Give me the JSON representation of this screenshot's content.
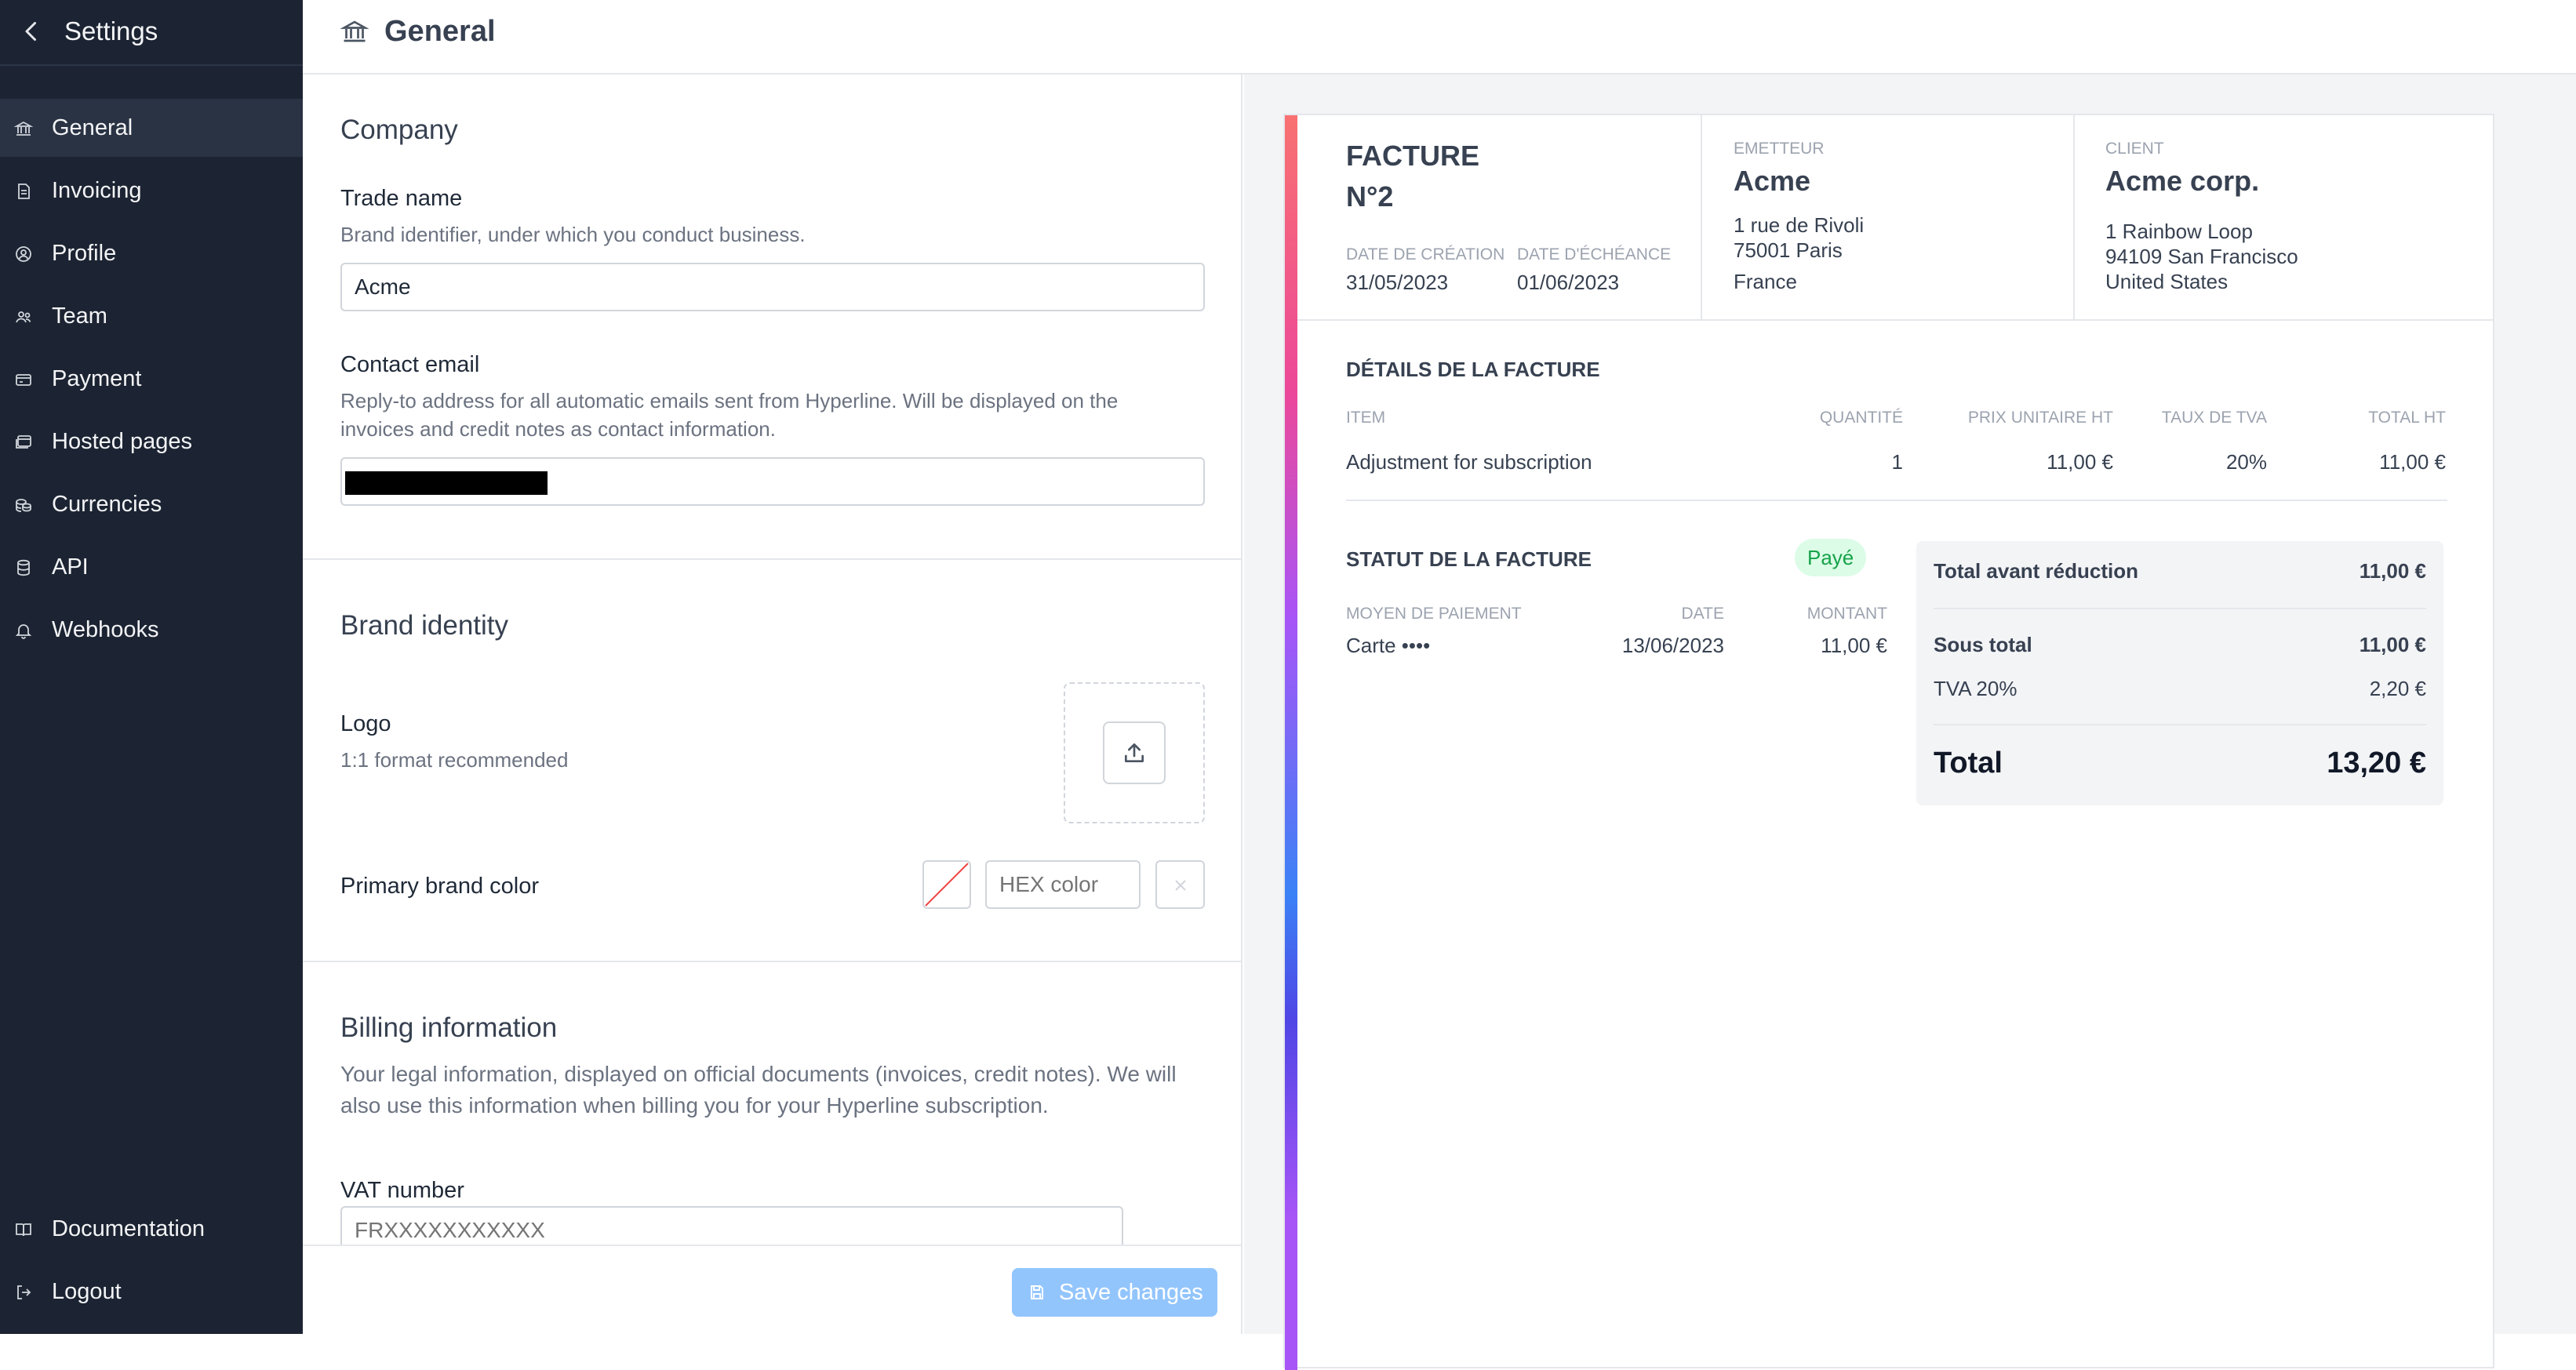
{
  "sidebar": {
    "title": "Settings",
    "items": [
      {
        "label": "General",
        "icon": "bank-icon"
      },
      {
        "label": "Invoicing",
        "icon": "document-icon"
      },
      {
        "label": "Profile",
        "icon": "user-circle-icon"
      },
      {
        "label": "Team",
        "icon": "team-icon"
      },
      {
        "label": "Payment",
        "icon": "credit-card-icon"
      },
      {
        "label": "Hosted pages",
        "icon": "browser-window-icon"
      },
      {
        "label": "Currencies",
        "icon": "coins-icon"
      },
      {
        "label": "API",
        "icon": "database-icon"
      },
      {
        "label": "Webhooks",
        "icon": "bell-icon"
      }
    ],
    "bottom": [
      {
        "label": "Documentation",
        "icon": "book-icon"
      },
      {
        "label": "Logout",
        "icon": "logout-icon"
      }
    ],
    "active": "General"
  },
  "header": {
    "title": "General",
    "icon": "bank-icon"
  },
  "form": {
    "company": {
      "title": "Company",
      "trade_name": {
        "label": "Trade name",
        "description": "Brand identifier, under which you conduct business.",
        "value": "Acme"
      },
      "contact_email": {
        "label": "Contact email",
        "description_line1": "Reply-to address for all automatic emails sent from Hyperline. Will be displayed on the",
        "description_line2": "invoices and credit notes as contact information.",
        "value": ""
      }
    },
    "brand": {
      "title": "Brand identity",
      "logo": {
        "label": "Logo",
        "description": "1:1 format recommended",
        "icon": "upload-icon"
      },
      "color": {
        "label": "Primary brand color",
        "placeholder": "HEX color"
      }
    },
    "billing": {
      "title": "Billing information",
      "description_line1": "Your legal information, displayed on official documents (invoices, credit notes). We will",
      "description_line2": "also use this information when billing you for your Hyperline subscription.",
      "vat": {
        "label": "VAT number",
        "placeholder": "FRXXXXXXXXXXX"
      }
    },
    "save_label": "Save changes"
  },
  "invoice": {
    "title": "FACTURE",
    "number": "N°2",
    "creation_label": "DATE DE CRÉATION",
    "creation_date": "31/05/2023",
    "due_label": "DATE D'ÉCHÉANCE",
    "due_date": "01/06/2023",
    "issuer": {
      "label": "EMETTEUR",
      "name": "Acme",
      "address1": "1 rue de Rivoli",
      "address2": "75001 Paris",
      "country": "France"
    },
    "client": {
      "label": "CLIENT",
      "name": "Acme corp.",
      "address1": "1 Rainbow Loop",
      "address2": "94109 San Francisco",
      "country": "United States"
    },
    "details_title": "DÉTAILS DE LA FACTURE",
    "columns": {
      "item": "ITEM",
      "qty": "QUANTITÉ",
      "unit": "PRIX UNITAIRE HT",
      "vat": "TAUX DE TVA",
      "total": "TOTAL HT"
    },
    "lines": [
      {
        "item": "Adjustment for subscription",
        "qty": "1",
        "unit": "11,00 €",
        "vat": "20%",
        "total": "11,00 €"
      }
    ],
    "status_title": "STATUT DE LA FACTURE",
    "status_badge": "Payé",
    "payment_columns": {
      "method": "MOYEN DE PAIEMENT",
      "date": "DATE",
      "amount": "MONTANT"
    },
    "payments": [
      {
        "method": "Carte ••••",
        "date": "13/06/2023",
        "amount": "11,00 €"
      }
    ],
    "totals": {
      "before_discount_label": "Total avant réduction",
      "before_discount": "11,00 €",
      "subtotal_label": "Sous total",
      "subtotal": "11,00 €",
      "vat_label": "TVA 20%",
      "vat": "2,20 €",
      "total_label": "Total",
      "total": "13,20 €"
    }
  },
  "colors": {
    "sidebar_bg": "#1c2433",
    "accent": "#93c5fd",
    "paid_badge": "#16a34a"
  }
}
